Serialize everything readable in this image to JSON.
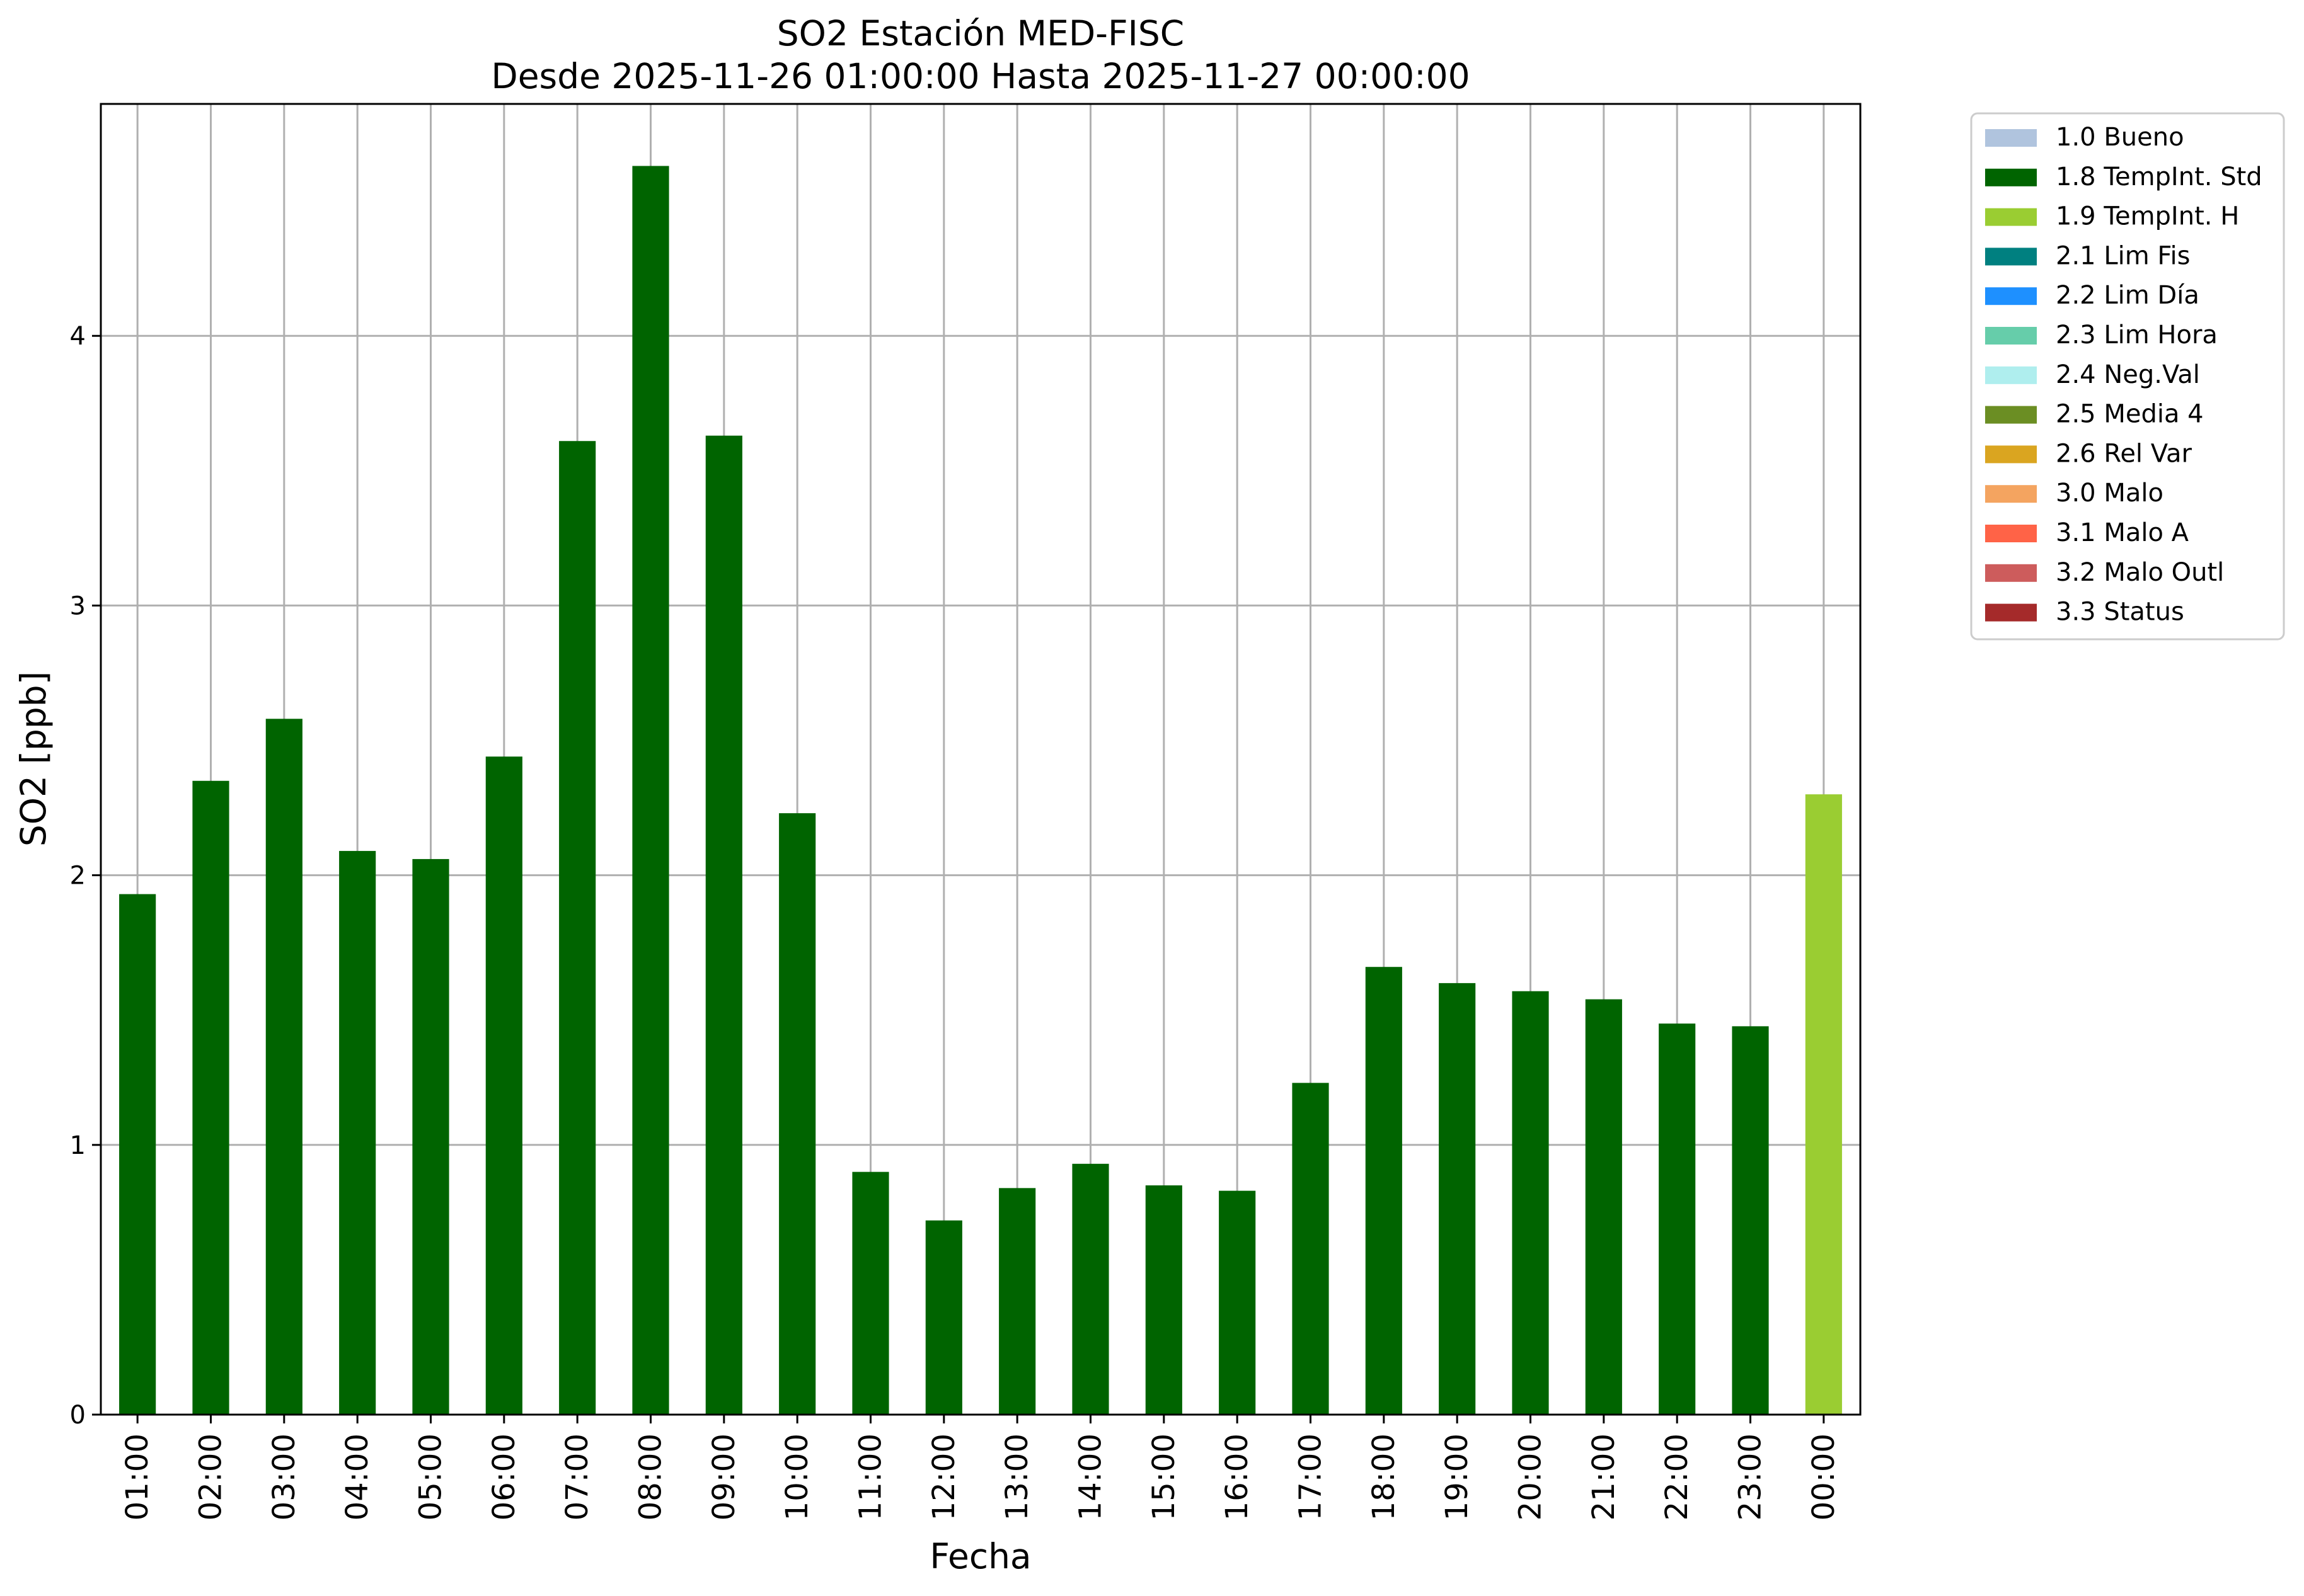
{
  "chart_data": {
    "type": "bar",
    "title": "SO2 Estación MED-FISC",
    "subtitle": "Desde 2025-11-26 01:00:00 Hasta 2025-11-27 00:00:00",
    "xlabel": "Fecha",
    "ylabel": "SO2 [ppb]",
    "ylim": [
      0,
      4.86
    ],
    "yticks": [
      0,
      1,
      2,
      3,
      4
    ],
    "grid": true,
    "legend_position": "outside-top-right",
    "categories": [
      "01:00",
      "02:00",
      "03:00",
      "04:00",
      "05:00",
      "06:00",
      "07:00",
      "08:00",
      "09:00",
      "10:00",
      "11:00",
      "12:00",
      "13:00",
      "14:00",
      "15:00",
      "16:00",
      "17:00",
      "18:00",
      "19:00",
      "20:00",
      "21:00",
      "22:00",
      "23:00",
      "00:00"
    ],
    "values": [
      1.93,
      2.35,
      2.58,
      2.09,
      2.06,
      2.44,
      3.61,
      4.63,
      3.63,
      2.23,
      0.9,
      0.72,
      0.84,
      0.93,
      0.85,
      0.83,
      1.23,
      1.66,
      1.6,
      1.57,
      1.54,
      1.45,
      1.44,
      2.3
    ],
    "bar_flags": [
      "1.8",
      "1.8",
      "1.8",
      "1.8",
      "1.8",
      "1.8",
      "1.8",
      "1.8",
      "1.8",
      "1.8",
      "1.8",
      "1.8",
      "1.8",
      "1.8",
      "1.8",
      "1.8",
      "1.8",
      "1.8",
      "1.8",
      "1.8",
      "1.8",
      "1.8",
      "1.8",
      "1.9"
    ],
    "legend": [
      {
        "code": "1.0",
        "label": "1.0 Bueno",
        "color": "#b0c4de"
      },
      {
        "code": "1.8",
        "label": "1.8 TempInt. Std",
        "color": "#006400"
      },
      {
        "code": "1.9",
        "label": "1.9 TempInt. H",
        "color": "#9acd32"
      },
      {
        "code": "2.1",
        "label": "2.1 Lim Fis",
        "color": "#008080"
      },
      {
        "code": "2.2",
        "label": "2.2 Lim Día",
        "color": "#1e90ff"
      },
      {
        "code": "2.3",
        "label": "2.3 Lim Hora",
        "color": "#66cdaa"
      },
      {
        "code": "2.4",
        "label": "2.4 Neg.Val",
        "color": "#afeeee"
      },
      {
        "code": "2.5",
        "label": "2.5 Media 4",
        "color": "#6b8e23"
      },
      {
        "code": "2.6",
        "label": "2.6 Rel Var",
        "color": "#daa520"
      },
      {
        "code": "3.0",
        "label": "3.0 Malo",
        "color": "#f4a460"
      },
      {
        "code": "3.1",
        "label": "3.1 Malo A",
        "color": "#ff6347"
      },
      {
        "code": "3.2",
        "label": "3.2 Malo Outl",
        "color": "#cd5c5c"
      },
      {
        "code": "3.3",
        "label": "3.3 Status",
        "color": "#a52a2a"
      }
    ]
  }
}
